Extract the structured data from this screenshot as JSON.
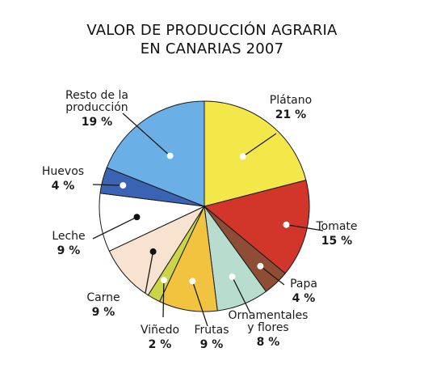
{
  "chart_data": {
    "type": "pie",
    "title_lines": [
      "VALOR DE PRODUCCIÓN AGRARIA",
      "EN CANARIAS 2007"
    ],
    "slices": [
      {
        "name": "Plátano",
        "value": 21,
        "pct_label": "21 %",
        "color": "#f4e74a",
        "marker": "white"
      },
      {
        "name": "Tomate",
        "value": 15,
        "pct_label": "15 %",
        "color": "#d2352a",
        "marker": "white"
      },
      {
        "name": "Papa",
        "value": 4,
        "pct_label": "4 %",
        "color": "#8f4d35",
        "marker": "white"
      },
      {
        "name_lines": [
          "Ornamentales",
          "y flores"
        ],
        "value": 8,
        "pct_label": "8 %",
        "color": "#b8dccd",
        "marker": "white"
      },
      {
        "name": "Frutas",
        "value": 9,
        "pct_label": "9 %",
        "color": "#f1c33e",
        "marker": "white"
      },
      {
        "name": "Viñedo",
        "value": 2,
        "pct_label": "2 %",
        "color": "#ccd447",
        "marker": "white"
      },
      {
        "name": "Carne",
        "value": 9,
        "pct_label": "9 %",
        "color": "#f7e3cf",
        "marker": "black"
      },
      {
        "name": "Leche",
        "value": 9,
        "pct_label": "9 %",
        "color": "#ffffff",
        "marker": "black"
      },
      {
        "name": "Huevos",
        "value": 4,
        "pct_label": "4 %",
        "color": "#3a63b3",
        "marker": "white"
      },
      {
        "name_lines": [
          "Resto de la",
          "producción"
        ],
        "value": 19,
        "pct_label": "19 %",
        "color": "#6ab0e6",
        "marker": "white"
      }
    ]
  }
}
